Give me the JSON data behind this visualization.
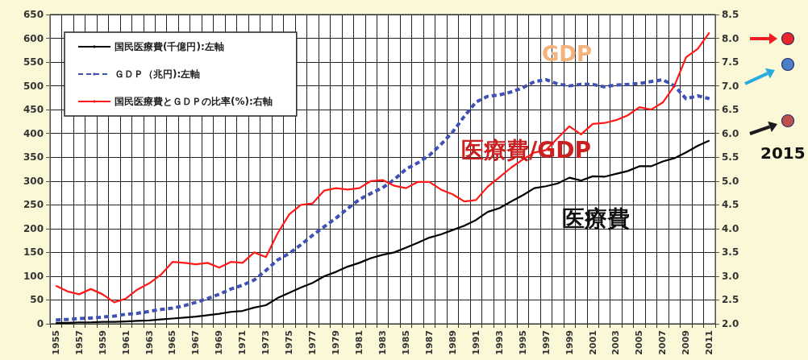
{
  "chart_data": {
    "type": "line",
    "categories": [
      "1955",
      null,
      "1957",
      null,
      "1959",
      null,
      "1961",
      null,
      "1963",
      null,
      "1965",
      null,
      "1967",
      null,
      "1969",
      null,
      "1971",
      null,
      "1973",
      null,
      "1975",
      null,
      "1977",
      null,
      "1979",
      null,
      "1981",
      null,
      "1983",
      null,
      "1985",
      null,
      "1987",
      null,
      "1989",
      null,
      "1991",
      null,
      "1993",
      null,
      "1995",
      null,
      "1997",
      null,
      "1999",
      null,
      "2001",
      null,
      "2003",
      null,
      "2005",
      null,
      "2007",
      null,
      "2009",
      null,
      "2011"
    ],
    "series": [
      {
        "name": "国民医療費(千億円):左軸",
        "color": "#000000",
        "line_style": "solid",
        "values": [
          2,
          2,
          3,
          3,
          4,
          4,
          5,
          6,
          7,
          9,
          11,
          13,
          15,
          18,
          21,
          25,
          27,
          34,
          39,
          54,
          65,
          76,
          86,
          100,
          109,
          120,
          128,
          138,
          145,
          150,
          160,
          170,
          181,
          188,
          197,
          206,
          218,
          235,
          243,
          257,
          270,
          285,
          289,
          295,
          307,
          301,
          310,
          309,
          315,
          321,
          331,
          331,
          341,
          348,
          360,
          374,
          385
        ]
      },
      {
        "name": "ＧＤＰ（兆円):左軸",
        "color": "#3f51b5",
        "line_style": "dashed",
        "values": [
          8,
          9,
          11,
          12,
          14,
          16,
          20,
          22,
          26,
          30,
          33,
          38,
          45,
          53,
          62,
          73,
          81,
          92,
          112,
          134,
          148,
          166,
          186,
          204,
          222,
          242,
          261,
          274,
          286,
          303,
          325,
          338,
          354,
          377,
          403,
          436,
          466,
          478,
          481,
          487,
          496,
          509,
          513,
          504,
          500,
          503,
          503,
          498,
          502,
          503,
          505,
          509,
          513,
          500,
          473,
          479,
          473
        ]
      },
      {
        "name": "国民医療費とＧＤＰの比率(%):右軸",
        "color": "#ff1a1a",
        "line_style": "solid",
        "axis": "y2",
        "values": [
          2.8,
          2.68,
          2.62,
          2.73,
          2.62,
          2.45,
          2.53,
          2.72,
          2.85,
          3.03,
          3.3,
          3.28,
          3.25,
          3.28,
          3.18,
          3.3,
          3.28,
          3.5,
          3.4,
          3.9,
          4.3,
          4.5,
          4.53,
          4.8,
          4.85,
          4.82,
          4.85,
          5.0,
          5.02,
          4.9,
          4.85,
          4.98,
          4.98,
          4.82,
          4.72,
          4.57,
          4.6,
          4.88,
          5.08,
          5.28,
          5.45,
          5.6,
          5.65,
          5.9,
          6.15,
          5.98,
          6.2,
          6.22,
          6.28,
          6.38,
          6.55,
          6.5,
          6.65,
          7.0,
          7.6,
          7.78,
          8.12
        ]
      }
    ],
    "ylim": [
      0,
      650
    ],
    "yticks": [
      0,
      50,
      100,
      150,
      200,
      250,
      300,
      350,
      400,
      450,
      500,
      550,
      600,
      650
    ],
    "y2lim": [
      2,
      8.5
    ],
    "y2ticks": [
      {
        "value": 2,
        "label": "2.0"
      },
      {
        "value": 2.5,
        "label": "2.5"
      },
      {
        "value": 3,
        "label": "3.0"
      },
      {
        "value": 3.5,
        "label": "3.5"
      },
      {
        "value": 4,
        "label": "4.0"
      },
      {
        "value": 4.5,
        "label": "4.5"
      },
      {
        "value": 5,
        "label": "5.0"
      },
      {
        "value": 5.5,
        "label": "5.5"
      },
      {
        "value": 6,
        "label": "6.0"
      },
      {
        "value": 6.5,
        "label": "6.5"
      },
      {
        "value": 7,
        "label": "7.0"
      },
      {
        "value": 7.5,
        "label": "7.5"
      },
      {
        "value": 8,
        "label": "8.0"
      },
      {
        "value": 8.5,
        "label": "8.5"
      }
    ],
    "annotations": [
      "GDP",
      "医療費/GDP",
      "医療費",
      "2015"
    ],
    "grid": true,
    "legend": "top left",
    "marker": "none"
  }
}
